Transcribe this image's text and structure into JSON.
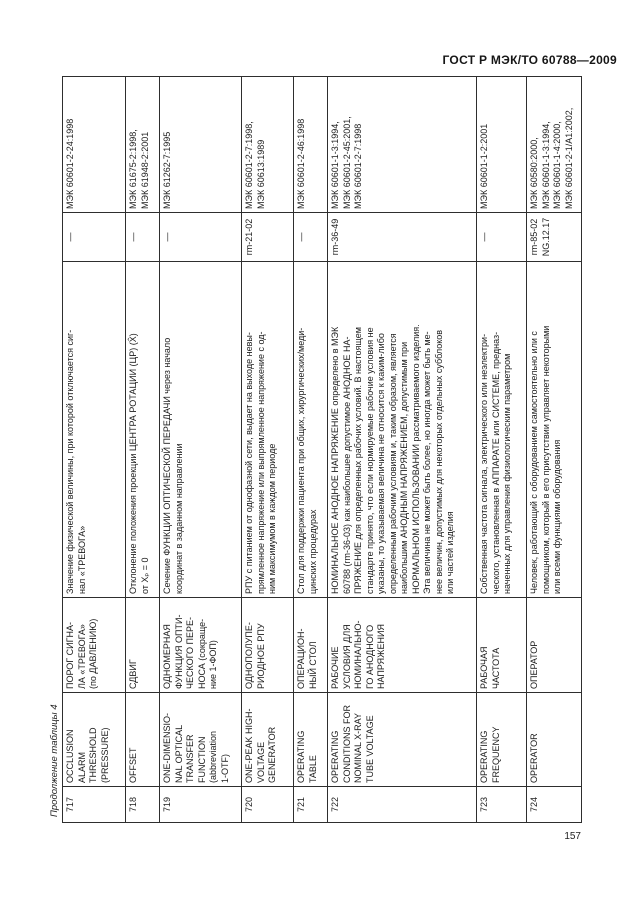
{
  "page": {
    "header": "ГОСТ Р МЭК/ТО 60788—2009",
    "caption": "Продолжение таблицы 4",
    "page_number": "157"
  },
  "table": {
    "rows": [
      {
        "num": "717",
        "en": "OCCLUSION\nALARM\nTHRESHOLD\n(PRESSURE)",
        "ru": "ПОРОГ СИГНА-\nЛА «ТРЕВОГА»\n(по ДАВЛЕНИЮ)",
        "def": "Значение физической величины, при которой отключается сиг-\nнал «ТРЕВОГА»",
        "rm": "—",
        "iec": "МЭК 60601-2-24:1998"
      },
      {
        "num": "718",
        "en": "OFFSET",
        "ru": "СДВИГ",
        "def": "Отклонение положения проекции ЦЕНТРА РОТАЦИИ (ЦР) (X̂)\nот Xₚ = 0",
        "rm": "—",
        "iec": "МЭК 61675-2:1998,\nМЭК 61948-2:2001"
      },
      {
        "num": "719",
        "en": "ONE-DIMENSIO-\nNAL OPTICAL\nTRANSFER\nFUNCTION\n(abbreviation\n1-OTF)",
        "ru": "ОДНОМЕРНАЯ\nФУНКЦИЯ ОПТИ-\nЧЕСКОГО ПЕРЕ-\nНОСА (сокраще-\nние 1-ФОП)",
        "def": "Сечение ФУНКЦИИ ОПТИЧЕСКОЙ ПЕРЕДАЧИ через начало\nкоординат в заданном направлении",
        "rm": "—",
        "iec": "МЭК 61262-7:1995"
      },
      {
        "num": "720",
        "en": "ONE-PEAK HIGH-\nVOLTAGE\nGENERATOR",
        "ru": "ОДНОПОЛУПЕ-\nРИОДНОЕ РПУ",
        "def": "РПУ с питанием от однофазной сети, выдает на выходе невы-\nпрямленное напряжение или выпрямленное напряжение с од-\nним максимумом в каждом периоде",
        "rm": "rm-21-02",
        "iec": "МЭК 60601-2-7:1998,\nМЭК 60613:1989"
      },
      {
        "num": "721",
        "en": "OPERATING\nTABLE",
        "ru": "ОПЕРАЦИОН-\nНЫЙ СТОЛ",
        "def": "Стол для поддержки пациента при общих, хирургических/меди-\nцинских процедурах",
        "rm": "—",
        "iec": "МЭК 60601-2-46:1998"
      },
      {
        "num": "722",
        "en": "OPERATING\nCONDITIONS FOR\nNOMINAL X-RAY\nTUBE VOLTAGE",
        "ru": "РАБОЧИЕ\nУСЛОВИЯ ДЛЯ\nНОМИНАЛЬНО-\nГО АНОДНОГО\nНАПРЯЖЕНИЯ",
        "def": "НОМИНАЛЬНОЕ АНОДНОЕ НАПРЯЖЕНИЕ определено в МЭК\n60788 (rm-36-03) как наибольшее допустимое АНОДНОЕ НА-\nПРЯЖЕНИЕ для определенных рабочих условий. В настоящем\nстандарте принято, что если нормируемые рабочие условия не\nуказаны, то указываемая величина не относится к каким-либо\nопределенным рабочим условиям и, таким образом, является\nнаибольшим АНОДНЫМ НАПРЯЖЕНИЕМ, допустимым при\nНОРМАЛЬНОМ ИСПОЛЬЗОВАНИИ рассматриваемого изделия.\nЭта величина не может быть более, но иногда может быть ме-\nнее величин, допустимых для некоторых отдельных субблоков\nили частей изделия",
        "rm": "rm-36-49",
        "iec": "МЭК 60601-1-3:1994,\nМЭК 60601-2-45:2001,\nМЭК 60601-2-7:1998"
      },
      {
        "num": "723",
        "en": "OPERATING\nFREQUENCY",
        "ru": "РАБОЧАЯ\nЧАСТОТА",
        "def": "Собственная частота сигнала, электрического или неэлектри-\nческого, установленная в АППАРАТЕ или СИСТЕМЕ, предназ-\nначенных для управления физиологическим параметром",
        "rm": "—",
        "iec": "МЭК 60601-1-2:2001"
      },
      {
        "num": "724",
        "en": "OPERATOR",
        "ru": "ОПЕРАТОР",
        "def": "Человек, работающий с оборудованием самостоятельно или с\nпомощником, который в его присутствии управляет некоторыми\nили всеми функциями оборудования",
        "rm": "rm-85-02\nNG.12.17",
        "iec": "МЭК 60580:2000,\nМЭК 60601-1-3:1994,\nМЭК 60601-1-4:2000,\nМЭК 60601-2-1/А1:2002,"
      }
    ]
  }
}
